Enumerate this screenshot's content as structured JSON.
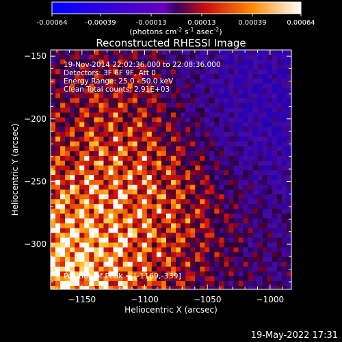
{
  "chart_data": {
    "type": "heatmap",
    "title": "Reconstructed RHESSI Image",
    "xlabel": "Heliocentric X (arcsec)",
    "ylabel": "Heliocentric Y (arcsec)",
    "xlim": [
      -1175,
      -983
    ],
    "ylim": [
      -336,
      -145
    ],
    "xticks": [
      -1150,
      -1100,
      -1050,
      -1000
    ],
    "yticks": [
      -150,
      -200,
      -250,
      -300
    ],
    "colorbar": {
      "ticks": [
        "-0.00064",
        "-0.00039",
        "-0.00013",
        "0.00013",
        "0.00039",
        "0.00064"
      ],
      "range": [
        -0.00064,
        0.00064
      ],
      "unit_label": "(photons cm",
      "unit_sup1": "-2",
      "unit_mid1": " s",
      "unit_sup2": "-1",
      "unit_mid2": " asec",
      "unit_sup3": "-2",
      "unit_end": ")"
    },
    "info_lines": [
      "19-Nov-2014 22:02:36.000 to 22:08:36.000",
      "Detectors: 3F 6F 9F, Att 0",
      "Energy Range: 25.0 - 50.0 keV",
      "Clean     Total counts: 2.91E+03"
    ],
    "peak_label": "Position of Peak = [-1169,-339]",
    "peak": [
      -1169,
      -339
    ]
  },
  "footer": {
    "date": "19-May-2022 17:31"
  }
}
